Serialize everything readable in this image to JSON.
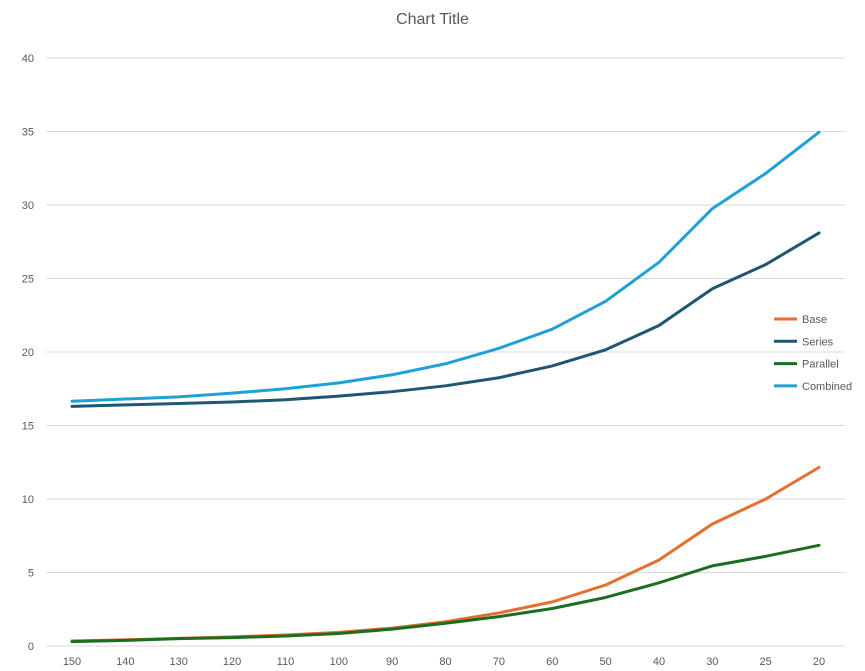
{
  "chart_data": {
    "type": "line",
    "title": "Chart Title",
    "xlabel": "",
    "ylabel": "",
    "categories": [
      "150",
      "140",
      "130",
      "120",
      "110",
      "100",
      "90",
      "80",
      "70",
      "60",
      "50",
      "40",
      "30",
      "25",
      "20"
    ],
    "ylim": [
      0,
      40
    ],
    "yticks": [
      0,
      5,
      10,
      15,
      20,
      25,
      30,
      35,
      40
    ],
    "grid": true,
    "legend_position": "right",
    "series": [
      {
        "name": "Base",
        "color": "#e46f2e",
        "values": [
          0.35,
          0.42,
          0.52,
          0.62,
          0.75,
          0.93,
          1.22,
          1.65,
          2.25,
          3.0,
          4.15,
          5.85,
          8.3,
          10.0,
          12.15
        ]
      },
      {
        "name": "Series",
        "color": "#1f5672",
        "values": [
          16.3,
          16.4,
          16.5,
          16.6,
          16.75,
          17.0,
          17.3,
          17.7,
          18.25,
          19.05,
          20.15,
          21.8,
          24.3,
          25.95,
          28.1
        ]
      },
      {
        "name": "Parallel",
        "color": "#1e6b22",
        "values": [
          0.3,
          0.38,
          0.5,
          0.57,
          0.68,
          0.85,
          1.15,
          1.55,
          2.0,
          2.55,
          3.3,
          4.3,
          5.45,
          6.1,
          6.85
        ]
      },
      {
        "name": "Combined",
        "color": "#1ea1d6",
        "values": [
          16.65,
          16.8,
          16.95,
          17.2,
          17.5,
          17.9,
          18.45,
          19.2,
          20.25,
          21.55,
          23.45,
          26.1,
          29.75,
          32.15,
          34.95
        ]
      }
    ]
  }
}
